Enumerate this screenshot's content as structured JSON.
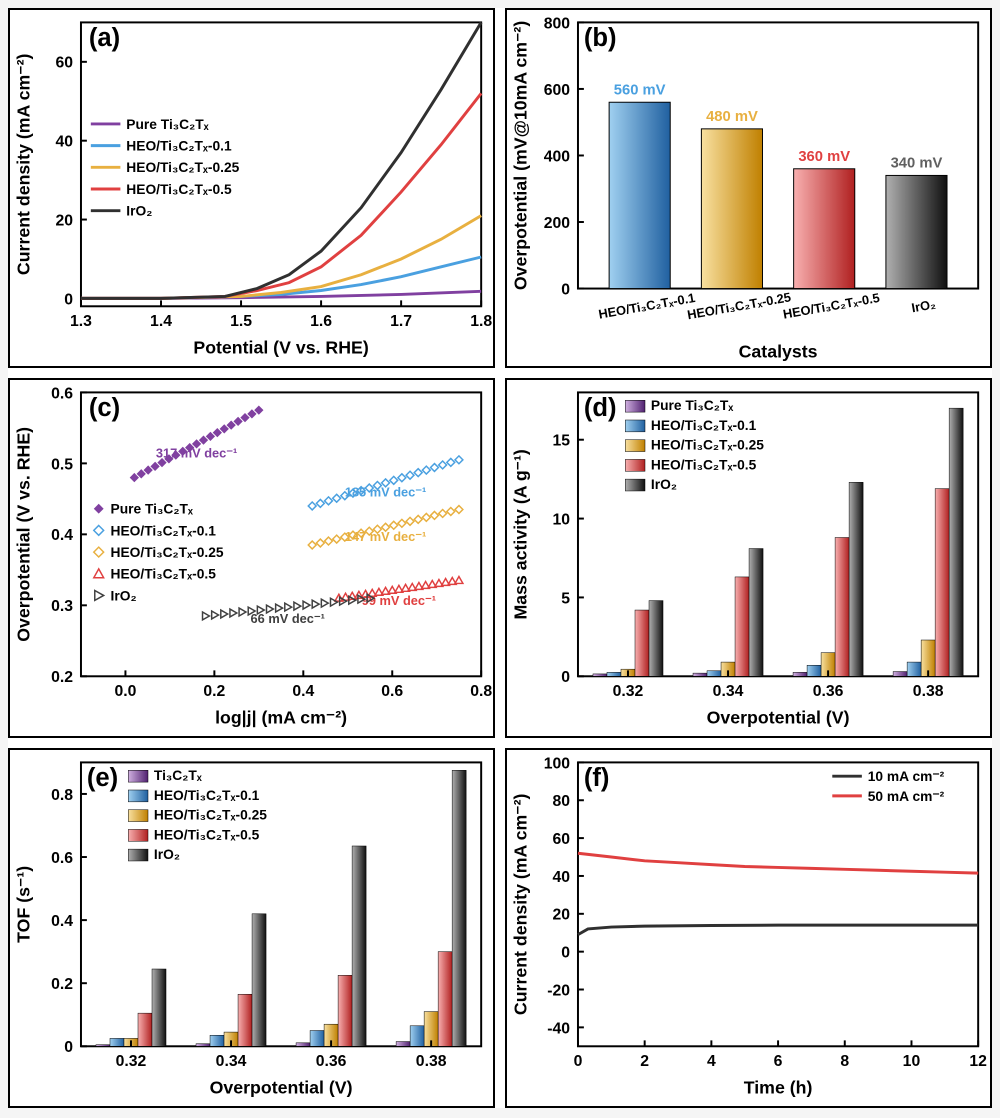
{
  "colors": {
    "purple": "#8040a0",
    "blue": "#4aa0e0",
    "orange": "#e8b040",
    "red": "#e04040",
    "black": "#303030",
    "grad_blue_1": "#a0d0f0",
    "grad_blue_2": "#2060a0",
    "grad_orange_1": "#f8e0a0",
    "grad_orange_2": "#c08000",
    "grad_red_1": "#f8b0b0",
    "grad_red_2": "#b02020",
    "grad_black_1": "#b0b0b0",
    "grad_black_2": "#101010",
    "grad_purple_1": "#d0b0e0",
    "grad_purple_2": "#502070"
  },
  "series_names": {
    "pure": "Pure Ti₃C₂Tₓ",
    "heo01": "HEO/Ti₃C₂Tₓ-0.1",
    "heo025": "HEO/Ti₃C₂Tₓ-0.25",
    "heo05": "HEO/Ti₃C₂Tₓ-0.5",
    "iro2": "IrO₂",
    "ti3c2": "Ti₃C₂Tₓ"
  },
  "panel_a": {
    "label": "(a)",
    "xlabel": "Potential (V vs. RHE)",
    "ylabel": "Current density (mA cm⁻²)",
    "xlim": [
      1.3,
      1.8
    ],
    "ylim": [
      -2,
      70
    ],
    "xticks": [
      1.3,
      1.4,
      1.5,
      1.6,
      1.7,
      1.8
    ],
    "yticks": [
      0,
      20,
      40,
      60
    ],
    "curves": {
      "pure": {
        "x": [
          1.3,
          1.4,
          1.5,
          1.6,
          1.7,
          1.8
        ],
        "y": [
          0,
          0,
          0.2,
          0.5,
          1.0,
          1.8
        ]
      },
      "heo01": {
        "x": [
          1.3,
          1.4,
          1.5,
          1.55,
          1.6,
          1.65,
          1.7,
          1.75,
          1.8
        ],
        "y": [
          0,
          0,
          0.5,
          1,
          2,
          3.5,
          5.5,
          8,
          10.5
        ]
      },
      "heo025": {
        "x": [
          1.3,
          1.4,
          1.5,
          1.55,
          1.6,
          1.65,
          1.7,
          1.75,
          1.8
        ],
        "y": [
          0,
          0,
          0.5,
          1.5,
          3,
          6,
          10,
          15,
          21
        ]
      },
      "heo05": {
        "x": [
          1.3,
          1.4,
          1.48,
          1.52,
          1.56,
          1.6,
          1.65,
          1.7,
          1.75,
          1.8
        ],
        "y": [
          0,
          0,
          0.5,
          2,
          4,
          8,
          16,
          27,
          39,
          52
        ]
      },
      "iro2": {
        "x": [
          1.3,
          1.4,
          1.48,
          1.52,
          1.56,
          1.6,
          1.65,
          1.7,
          1.75,
          1.8
        ],
        "y": [
          0,
          0,
          0.5,
          2.5,
          6,
          12,
          23,
          37,
          53,
          70
        ]
      }
    }
  },
  "panel_b": {
    "label": "(b)",
    "xlabel": "Catalysts",
    "ylabel": "Overpotential (mV@10mA cm⁻²)",
    "ylim": [
      0,
      800
    ],
    "yticks": [
      0,
      200,
      400,
      600,
      800
    ],
    "bars": [
      {
        "name": "HEO/Ti₃C₂Tₓ-0.1",
        "value": 560,
        "label": "560 mV",
        "grad": "blue"
      },
      {
        "name": "HEO/Ti₃C₂Tₓ-0.25",
        "value": 480,
        "label": "480 mV",
        "grad": "orange"
      },
      {
        "name": "HEO/Ti₃C₂Tₓ-0.5",
        "value": 360,
        "label": "360 mV",
        "grad": "red"
      },
      {
        "name": "IrO₂",
        "value": 340,
        "label": "340 mV",
        "grad": "black"
      }
    ]
  },
  "panel_c": {
    "label": "(c)",
    "xlabel": "log|j| (mA cm⁻²)",
    "ylabel": "Overpotential (V vs. RHE)",
    "xlim": [
      -0.1,
      0.8
    ],
    "ylim": [
      0.2,
      0.6
    ],
    "xticks": [
      0.0,
      0.2,
      0.4,
      0.6,
      0.8
    ],
    "yticks": [
      0.2,
      0.3,
      0.4,
      0.5,
      0.6
    ],
    "lines": [
      {
        "key": "pure",
        "x": [
          0.02,
          0.3
        ],
        "y": [
          0.48,
          0.575
        ],
        "slope": "317 mV dec⁻¹",
        "marker": "diamond-fill"
      },
      {
        "key": "heo01",
        "x": [
          0.42,
          0.75
        ],
        "y": [
          0.44,
          0.505
        ],
        "slope": "185 mV dec⁻¹",
        "marker": "diamond"
      },
      {
        "key": "heo025",
        "x": [
          0.42,
          0.75
        ],
        "y": [
          0.385,
          0.435
        ],
        "slope": "147 mV dec⁻¹",
        "marker": "diamond"
      },
      {
        "key": "heo05",
        "x": [
          0.48,
          0.75
        ],
        "y": [
          0.31,
          0.335
        ],
        "slope": "99 mV dec⁻¹",
        "marker": "triangle"
      },
      {
        "key": "iro2",
        "x": [
          0.18,
          0.55
        ],
        "y": [
          0.285,
          0.31
        ],
        "slope": "66 mV dec⁻¹",
        "marker": "triangle-left"
      }
    ]
  },
  "panel_d": {
    "label": "(d)",
    "xlabel": "Overpotential (V)",
    "ylabel": "Mass activity (A g⁻¹)",
    "ylim": [
      0,
      18
    ],
    "yticks": [
      0,
      5,
      10,
      15
    ],
    "groups": [
      "0.32",
      "0.34",
      "0.36",
      "0.38"
    ],
    "series": [
      "pure",
      "heo01",
      "heo025",
      "heo05",
      "iro2"
    ],
    "values": {
      "pure": [
        0.15,
        0.2,
        0.25,
        0.3
      ],
      "heo01": [
        0.25,
        0.35,
        0.7,
        0.9
      ],
      "heo025": [
        0.45,
        0.9,
        1.5,
        2.3
      ],
      "heo05": [
        4.2,
        6.3,
        8.8,
        11.9
      ],
      "iro2": [
        4.8,
        8.1,
        12.3,
        17.0
      ]
    }
  },
  "panel_e": {
    "label": "(e)",
    "xlabel": "Overpotential (V)",
    "ylabel": "TOF (s⁻¹)",
    "ylim": [
      0,
      0.9
    ],
    "yticks": [
      0.0,
      0.2,
      0.4,
      0.6,
      0.8
    ],
    "groups": [
      "0.32",
      "0.34",
      "0.36",
      "0.38"
    ],
    "series": [
      "ti3c2",
      "heo01",
      "heo025",
      "heo05",
      "iro2"
    ],
    "values": {
      "ti3c2": [
        0.005,
        0.008,
        0.011,
        0.015
      ],
      "heo01": [
        0.025,
        0.035,
        0.05,
        0.065
      ],
      "heo025": [
        0.025,
        0.045,
        0.07,
        0.11
      ],
      "heo05": [
        0.105,
        0.165,
        0.225,
        0.3
      ],
      "iro2": [
        0.245,
        0.42,
        0.635,
        0.875
      ]
    }
  },
  "panel_f": {
    "label": "(f)",
    "xlabel": "Time (h)",
    "ylabel": "Current density (mA cm⁻²)",
    "xlim": [
      0,
      12
    ],
    "ylim": [
      -50,
      100
    ],
    "xticks": [
      0,
      2,
      4,
      6,
      8,
      10,
      12
    ],
    "yticks": [
      -40,
      -20,
      0,
      20,
      40,
      60,
      80,
      100
    ],
    "legend": [
      {
        "label": "10 mA cm⁻²",
        "color": "black"
      },
      {
        "label": "50 mA cm⁻²",
        "color": "red"
      }
    ],
    "curves": {
      "black": {
        "x": [
          0,
          0.3,
          1,
          2,
          4,
          6,
          8,
          10,
          11.5,
          12
        ],
        "y": [
          9,
          12,
          13,
          13.5,
          13.8,
          14,
          14,
          14,
          14,
          14
        ]
      },
      "red": {
        "x": [
          0,
          0.5,
          1,
          2,
          3,
          4,
          5,
          6,
          7,
          8,
          9,
          10,
          11,
          12
        ],
        "y": [
          52,
          51,
          50,
          48,
          47,
          46,
          45,
          44.5,
          44,
          43.5,
          43,
          42.5,
          42,
          41.5
        ]
      }
    }
  }
}
